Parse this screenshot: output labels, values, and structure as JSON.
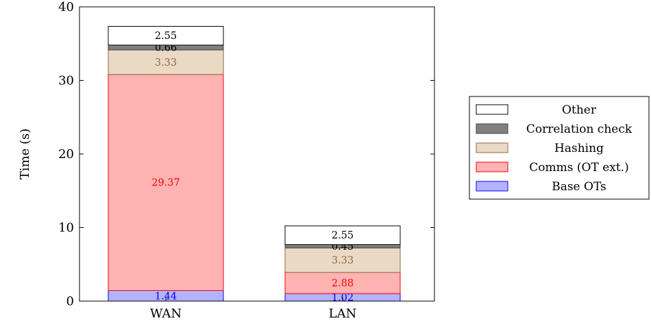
{
  "chart_data": {
    "type": "bar",
    "stacked": true,
    "categories": [
      "WAN",
      "LAN"
    ],
    "ylabel": "Time (s)",
    "xlabel": "",
    "ylim": [
      0,
      40
    ],
    "yticks": [
      0,
      10,
      20,
      30,
      40
    ],
    "grid": false,
    "legend_position": "right",
    "series": [
      {
        "name": "Base OTs",
        "values": [
          1.44,
          1.02
        ],
        "fill": "#b3b3ff",
        "stroke": "#0000ff",
        "label_color": "#0000ff"
      },
      {
        "name": "Comms (OT ext.)",
        "values": [
          29.37,
          2.88
        ],
        "fill": "#ffb3b3",
        "stroke": "#ff0000",
        "label_color": "#ff0000"
      },
      {
        "name": "Hashing",
        "values": [
          3.33,
          3.33
        ],
        "fill": "#ead9c5",
        "stroke": "#8c6a3f",
        "label_color": "#8c6a3f"
      },
      {
        "name": "Correlation check",
        "values": [
          0.66,
          0.45
        ],
        "fill": "#808080",
        "stroke": "#404040",
        "label_color": "#000000"
      },
      {
        "name": "Other",
        "values": [
          2.55,
          2.55
        ],
        "fill": "#ffffff",
        "stroke": "#000000",
        "label_color": "#000000"
      }
    ],
    "data_labels": [
      [
        "1.44",
        "29.37",
        "3.33",
        "0.66",
        "2.55"
      ],
      [
        "1.02",
        "2.88",
        "3.33",
        "0.45",
        "2.55"
      ]
    ],
    "legend_order": [
      "Other",
      "Correlation check",
      "Hashing",
      "Comms (OT ext.)",
      "Base OTs"
    ]
  }
}
